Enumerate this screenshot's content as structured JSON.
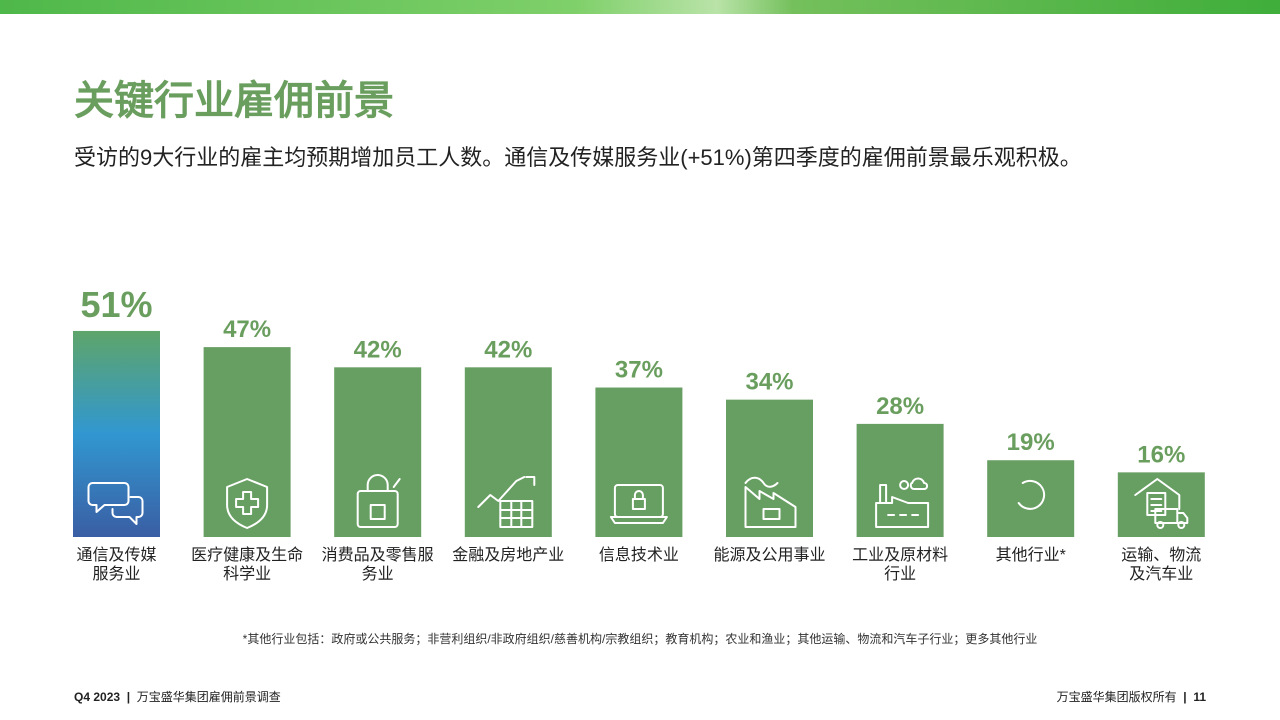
{
  "header": {
    "title": "关键行业雇佣前景",
    "subtitle": "受访的9大行业的雇主均预期增加员工人数。通信及传媒服务业(+51%)第四季度的雇佣前景最乐观积极。"
  },
  "chart_data": {
    "type": "bar",
    "categories": [
      "通信及传媒\n服务业",
      "医疗健康及生命\n科学业",
      "消费品及零售服\n务业",
      "金融及房地产业",
      "信息技术业",
      "能源及公用事业",
      "工业及原材料\n行业",
      "其他行业*",
      "运输、物流\n及汽车业"
    ],
    "values": [
      51,
      47,
      42,
      42,
      37,
      34,
      28,
      19,
      16
    ],
    "value_labels": [
      "51%",
      "47%",
      "42%",
      "42%",
      "37%",
      "34%",
      "28%",
      "19%",
      "16%"
    ],
    "color": "#679e62"
  },
  "footnote": "*其他行业包括：政府或公共服务；非营利组织/非政府组织/慈善机构/宗教组织；教育机构；农业和渔业；其他运输、物流和汽车子行业；更多其他行业",
  "footer": {
    "quarter": "Q4 2023",
    "survey": "万宝盛华集团雇佣前景调查",
    "copyright": "万宝盛华集团版权所有",
    "page": "11"
  }
}
